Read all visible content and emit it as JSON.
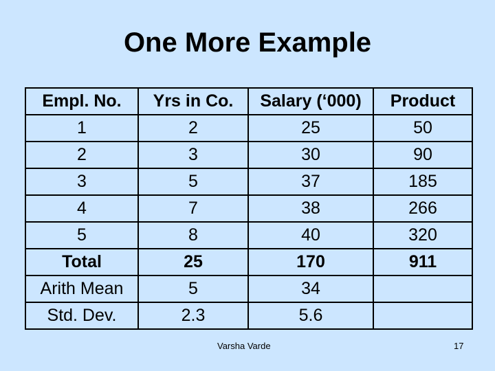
{
  "slide": {
    "title": "One More Example",
    "footer": "Varsha Varde",
    "page_number": "17"
  },
  "table": {
    "headers": [
      "Empl. No.",
      "Yrs in Co.",
      "Salary (‘000)",
      "Product"
    ],
    "rows": [
      [
        "1",
        "2",
        "25",
        "50"
      ],
      [
        "2",
        "3",
        "30",
        "90"
      ],
      [
        "3",
        "5",
        "37",
        "185"
      ],
      [
        "4",
        "7",
        "38",
        "266"
      ],
      [
        "5",
        "8",
        "40",
        "320"
      ]
    ],
    "total": [
      "Total",
      "25",
      "170",
      "911"
    ],
    "mean": [
      "Arith Mean",
      "5",
      "34",
      ""
    ],
    "sd": [
      "Std. Dev.",
      "2.3",
      "5.6",
      ""
    ]
  }
}
